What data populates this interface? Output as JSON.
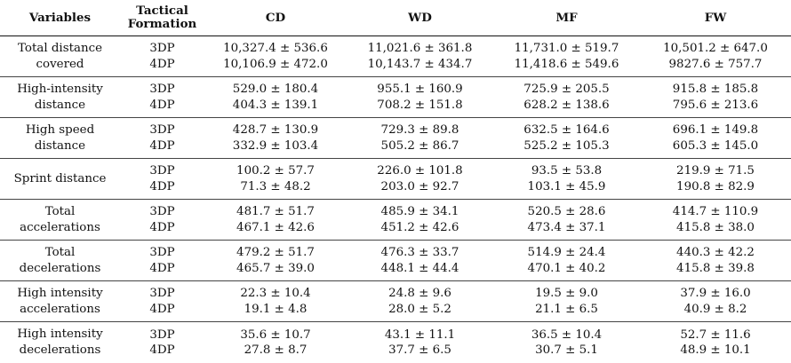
{
  "table": {
    "headers": [
      "Variables",
      "Tactical Formation",
      "CD",
      "WD",
      "MF",
      "FW"
    ],
    "header_lines": [
      [
        "Variables"
      ],
      [
        "Tactical",
        "Formation"
      ],
      [
        "CD"
      ],
      [
        "WD"
      ],
      [
        "MF"
      ],
      [
        "FW"
      ]
    ],
    "rows": [
      {
        "variable": [
          "Total distance",
          "covered"
        ],
        "formations": [
          "3DP",
          "4DP"
        ],
        "CD": [
          "10,327.4 ± 536.6",
          "10,106.9 ± 472.0"
        ],
        "WD": [
          "11,021.6 ± 361.8",
          "10,143.7 ± 434.7"
        ],
        "MF": [
          "11,731.0 ± 519.7",
          "11,418.6 ± 549.6"
        ],
        "FW": [
          "10,501.2 ± 647.0",
          "9827.6 ± 757.7"
        ]
      },
      {
        "variable": [
          "High-intensity",
          "distance"
        ],
        "formations": [
          "3DP",
          "4DP"
        ],
        "CD": [
          "529.0 ± 180.4",
          "404.3 ± 139.1"
        ],
        "WD": [
          "955.1 ± 160.9",
          "708.2 ± 151.8"
        ],
        "MF": [
          "725.9 ± 205.5",
          "628.2 ± 138.6"
        ],
        "FW": [
          "915.8 ± 185.8",
          "795.6 ± 213.6"
        ]
      },
      {
        "variable": [
          "High speed",
          "distance"
        ],
        "formations": [
          "3DP",
          "4DP"
        ],
        "CD": [
          "428.7 ± 130.9",
          "332.9 ± 103.4"
        ],
        "WD": [
          "729.3 ± 89.8",
          "505.2 ± 86.7"
        ],
        "MF": [
          "632.5 ± 164.6",
          "525.2 ± 105.3"
        ],
        "FW": [
          "696.1 ± 149.8",
          "605.3 ± 145.0"
        ]
      },
      {
        "variable": [
          "Sprint distance"
        ],
        "formations": [
          "3DP",
          "4DP"
        ],
        "CD": [
          "100.2 ± 57.7",
          "71.3 ± 48.2"
        ],
        "WD": [
          "226.0 ± 101.8",
          "203.0 ± 92.7"
        ],
        "MF": [
          "93.5 ± 53.8",
          "103.1 ± 45.9"
        ],
        "FW": [
          "219.9 ± 71.5",
          "190.8 ± 82.9"
        ]
      },
      {
        "variable": [
          "Total",
          "accelerations"
        ],
        "formations": [
          "3DP",
          "4DP"
        ],
        "CD": [
          "481.7 ± 51.7",
          "467.1 ± 42.6"
        ],
        "WD": [
          "485.9 ± 34.1",
          "451.2 ± 42.6"
        ],
        "MF": [
          "520.5 ± 28.6",
          "473.4 ± 37.1"
        ],
        "FW": [
          "414.7 ± 110.9",
          "415.8 ± 38.0"
        ]
      },
      {
        "variable": [
          "Total",
          "decelerations"
        ],
        "formations": [
          "3DP",
          "4DP"
        ],
        "CD": [
          "479.2 ± 51.7",
          "465.7 ± 39.0"
        ],
        "WD": [
          "476.3 ± 33.7",
          "448.1 ± 44.4"
        ],
        "MF": [
          "514.9 ± 24.4",
          "470.1 ± 40.2"
        ],
        "FW": [
          "440.3 ± 42.2",
          "415.8 ± 39.8"
        ]
      },
      {
        "variable": [
          "High intensity",
          "accelerations"
        ],
        "formations": [
          "3DP",
          "4DP"
        ],
        "CD": [
          "22.3 ± 10.4",
          "19.1 ± 4.8"
        ],
        "WD": [
          "24.8 ± 9.6",
          "28.0 ± 5.2"
        ],
        "MF": [
          "19.5 ± 9.0",
          "21.1 ± 6.5"
        ],
        "FW": [
          "37.9 ± 16.0",
          "40.9 ± 8.2"
        ]
      },
      {
        "variable": [
          "High intensity",
          "decelerations"
        ],
        "formations": [
          "3DP",
          "4DP"
        ],
        "CD": [
          "35.6 ± 10.7",
          "27.8 ± 8.7"
        ],
        "WD": [
          "43.1 ± 11.1",
          "37.7 ± 6.5"
        ],
        "MF": [
          "36.5 ± 10.4",
          "30.7 ± 5.1"
        ],
        "FW": [
          "52.7 ± 11.6",
          "48.9 ± 10.1"
        ]
      }
    ]
  }
}
